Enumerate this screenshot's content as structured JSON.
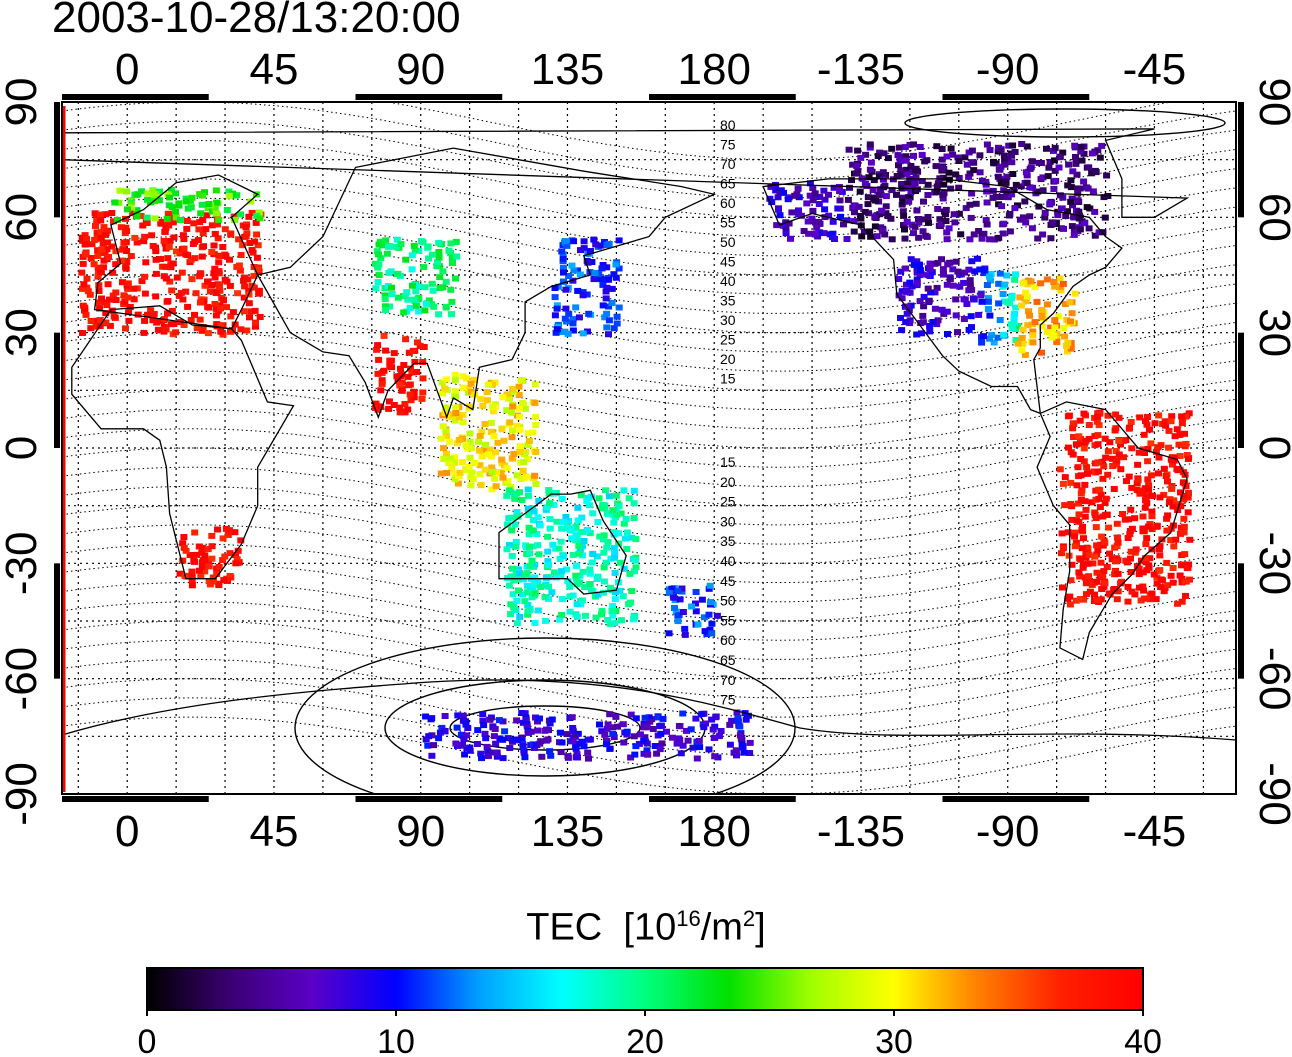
{
  "timestamp": "2003-10-28/13:20:00",
  "map": {
    "top_lon_ticks": [
      "0",
      "45",
      "90",
      "135",
      "180",
      "-135",
      "-90",
      "-45"
    ],
    "bottom_lon_ticks": [
      "0",
      "45",
      "90",
      "135",
      "180",
      "-135",
      "-90",
      "-45"
    ],
    "left_lat_ticks": [
      "90",
      "60",
      "30",
      "0",
      "-30",
      "-60",
      "-90"
    ],
    "right_lat_ticks": [
      "90",
      "60",
      "30",
      "0",
      "-30",
      "-60",
      "-90"
    ],
    "contour_labels_north": [
      "80",
      "75",
      "70",
      "65",
      "60",
      "55",
      "50",
      "45",
      "40",
      "35",
      "30",
      "25",
      "20",
      "15"
    ],
    "contour_labels_south": [
      "15",
      "20",
      "25",
      "30",
      "35",
      "40",
      "45",
      "50",
      "55",
      "60",
      "65",
      "70",
      "75"
    ]
  },
  "colorbar": {
    "title": "TEC",
    "unit_base": "10",
    "unit_exp": "16",
    "unit_mid": "/m",
    "unit_exp2": "2",
    "ticks": [
      "0",
      "10",
      "20",
      "30",
      "40"
    ],
    "colors": [
      "#000000",
      "#3a0072",
      "#5a00c8",
      "#0000ff",
      "#00a0ff",
      "#00ffff",
      "#00ff80",
      "#00e000",
      "#a0ff00",
      "#ffff00",
      "#ff8000",
      "#ff2000",
      "#ff0000"
    ]
  },
  "tec_regions": [
    {
      "name": "europe",
      "value": 39,
      "lon": [
        -15,
        40
      ],
      "lat": [
        30,
        62
      ]
    },
    {
      "name": "north-europe-band",
      "value": 24,
      "lon": [
        -5,
        40
      ],
      "lat": [
        60,
        68
      ]
    },
    {
      "name": "russia",
      "value": 20,
      "lon": [
        75,
        100
      ],
      "lat": [
        35,
        55
      ]
    },
    {
      "name": "japan",
      "value": 11,
      "lon": [
        130,
        150
      ],
      "lat": [
        30,
        55
      ]
    },
    {
      "name": "india",
      "value": 39,
      "lon": [
        75,
        90
      ],
      "lat": [
        10,
        30
      ]
    },
    {
      "name": "se-asia",
      "value": 30,
      "lon": [
        95,
        125
      ],
      "lat": [
        -10,
        20
      ]
    },
    {
      "name": "australia",
      "value": 18,
      "lon": [
        115,
        155
      ],
      "lat": [
        -45,
        -10
      ]
    },
    {
      "name": "new-zealand",
      "value": 11,
      "lon": [
        165,
        180
      ],
      "lat": [
        -48,
        -35
      ]
    },
    {
      "name": "africa-south",
      "value": 39,
      "lon": [
        15,
        35
      ],
      "lat": [
        -35,
        -20
      ]
    },
    {
      "name": "canada",
      "value": 4,
      "lon": [
        -140,
        -60
      ],
      "lat": [
        55,
        80
      ]
    },
    {
      "name": "alaska",
      "value": 7,
      "lon": [
        -165,
        -140
      ],
      "lat": [
        55,
        70
      ]
    },
    {
      "name": "usa-west",
      "value": 7,
      "lon": [
        -125,
        -100
      ],
      "lat": [
        30,
        50
      ]
    },
    {
      "name": "usa-central",
      "value": 14,
      "lon": [
        -100,
        -88
      ],
      "lat": [
        28,
        48
      ]
    },
    {
      "name": "usa-east",
      "value": 32,
      "lon": [
        -88,
        -70
      ],
      "lat": [
        25,
        45
      ]
    },
    {
      "name": "south-america",
      "value": 39,
      "lon": [
        -75,
        -35
      ],
      "lat": [
        -40,
        10
      ]
    },
    {
      "name": "antarctica",
      "value": 8,
      "lon": [
        90,
        190
      ],
      "lat": [
        -80,
        -68
      ]
    }
  ]
}
